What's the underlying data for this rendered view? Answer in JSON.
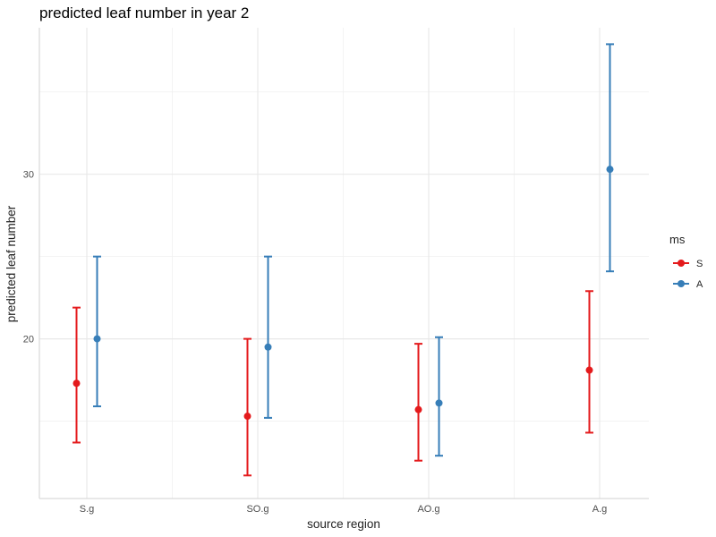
{
  "chart_data": {
    "type": "scatter",
    "subtype": "point with error bars (dodged by group)",
    "title": "predicted leaf number in year 2",
    "xlabel": "source region",
    "ylabel": "predicted leaf number",
    "categories": [
      "S.g",
      "SO.g",
      "AO.g",
      "A.g"
    ],
    "ylim": [
      10.3,
      38.9
    ],
    "yticks": [
      20,
      30
    ],
    "grid": true,
    "legend": {
      "title": "ms",
      "position": "right"
    },
    "series": [
      {
        "name": "S",
        "color": "#e41a1c",
        "values": [
          17.3,
          15.3,
          15.7,
          18.1
        ],
        "lower": [
          13.7,
          11.7,
          12.6,
          14.3
        ],
        "upper": [
          21.9,
          20.0,
          19.7,
          22.9
        ]
      },
      {
        "name": "A",
        "color": "#377eb8",
        "values": [
          20.0,
          19.5,
          16.1,
          30.3
        ],
        "lower": [
          15.9,
          15.2,
          12.9,
          24.1
        ],
        "upper": [
          25.0,
          25.0,
          20.1,
          37.9
        ]
      }
    ]
  }
}
